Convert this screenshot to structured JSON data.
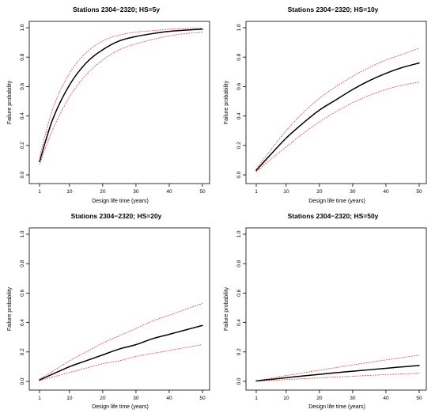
{
  "chart_data": [
    {
      "type": "line",
      "title": "Stations 2304−2320; HS=5y",
      "xlabel": "Design life time (years)",
      "ylabel": "Failure probability",
      "xlim": [
        1,
        50
      ],
      "ylim": [
        0,
        1
      ],
      "xticks": [
        "1",
        "10",
        "20",
        "30",
        "40",
        "50"
      ],
      "yticks": [
        "0.0",
        "0.2",
        "0.4",
        "0.6",
        "0.8",
        "1.0"
      ],
      "grid": false,
      "x": [
        1,
        5,
        10,
        15,
        20,
        25,
        30,
        35,
        40,
        45,
        50
      ],
      "series": [
        {
          "values": [
            0.09,
            0.38,
            0.61,
            0.76,
            0.85,
            0.91,
            0.94,
            0.96,
            0.975,
            0.984,
            0.99
          ],
          "color": "#000000",
          "style": "solid"
        },
        {
          "values": [
            0.12,
            0.45,
            0.69,
            0.83,
            0.91,
            0.95,
            0.97,
            0.98,
            0.99,
            0.995,
            0.998
          ],
          "color": "#e05050",
          "style": "dotted"
        },
        {
          "values": [
            0.07,
            0.31,
            0.53,
            0.68,
            0.78,
            0.85,
            0.89,
            0.92,
            0.945,
            0.96,
            0.97
          ],
          "color": "#e05050",
          "style": "dotted"
        }
      ]
    },
    {
      "type": "line",
      "title": "Stations 2304−2320; HS=10y",
      "xlabel": "Design life time (years)",
      "ylabel": "Failure probability",
      "xlim": [
        1,
        50
      ],
      "ylim": [
        0,
        1
      ],
      "xticks": [
        "1",
        "10",
        "20",
        "30",
        "40",
        "50"
      ],
      "yticks": [
        "0.0",
        "0.2",
        "0.4",
        "0.6",
        "0.8",
        "1.0"
      ],
      "grid": false,
      "x": [
        1,
        5,
        10,
        15,
        20,
        25,
        30,
        35,
        40,
        45,
        50
      ],
      "series": [
        {
          "values": [
            0.03,
            0.13,
            0.25,
            0.35,
            0.44,
            0.51,
            0.58,
            0.64,
            0.69,
            0.73,
            0.76
          ],
          "color": "#000000",
          "style": "solid"
        },
        {
          "values": [
            0.04,
            0.16,
            0.3,
            0.42,
            0.52,
            0.6,
            0.67,
            0.73,
            0.78,
            0.82,
            0.86
          ],
          "color": "#e05050",
          "style": "dotted"
        },
        {
          "values": [
            0.02,
            0.1,
            0.19,
            0.28,
            0.36,
            0.43,
            0.49,
            0.54,
            0.58,
            0.61,
            0.63
          ],
          "color": "#e05050",
          "style": "dotted"
        }
      ]
    },
    {
      "type": "line",
      "title": "Stations 2304−2320; HS=20y",
      "xlabel": "Design life time (years)",
      "ylabel": "Failure probability",
      "xlim": [
        1,
        50
      ],
      "ylim": [
        0,
        1
      ],
      "xticks": [
        "1",
        "10",
        "20",
        "30",
        "40",
        "50"
      ],
      "yticks": [
        "0.0",
        "0.2",
        "0.4",
        "0.6",
        "0.8",
        "1.0"
      ],
      "grid": false,
      "x": [
        1,
        5,
        10,
        15,
        20,
        25,
        30,
        35,
        40,
        45,
        50
      ],
      "series": [
        {
          "values": [
            0.01,
            0.05,
            0.1,
            0.14,
            0.18,
            0.22,
            0.25,
            0.29,
            0.32,
            0.35,
            0.38
          ],
          "color": "#000000",
          "style": "solid"
        },
        {
          "values": [
            0.015,
            0.07,
            0.14,
            0.2,
            0.26,
            0.31,
            0.36,
            0.41,
            0.45,
            0.49,
            0.53
          ],
          "color": "#e05050",
          "style": "dotted"
        },
        {
          "values": [
            0.005,
            0.03,
            0.06,
            0.09,
            0.12,
            0.14,
            0.17,
            0.19,
            0.21,
            0.23,
            0.25
          ],
          "color": "#e05050",
          "style": "dotted"
        }
      ]
    },
    {
      "type": "line",
      "title": "Stations 2304−2320; HS=50y",
      "xlabel": "Design life time (years)",
      "ylabel": "Failure probability",
      "xlim": [
        1,
        50
      ],
      "ylim": [
        0,
        1
      ],
      "xticks": [
        "1",
        "10",
        "20",
        "30",
        "40",
        "50"
      ],
      "yticks": [
        "0.0",
        "0.2",
        "0.4",
        "0.6",
        "0.8",
        "1.0"
      ],
      "grid": false,
      "x": [
        1,
        5,
        10,
        15,
        20,
        25,
        30,
        35,
        40,
        45,
        50
      ],
      "series": [
        {
          "values": [
            0.003,
            0.013,
            0.025,
            0.037,
            0.048,
            0.059,
            0.069,
            0.079,
            0.089,
            0.099,
            0.108
          ],
          "color": "#000000",
          "style": "solid"
        },
        {
          "values": [
            0.004,
            0.02,
            0.04,
            0.058,
            0.076,
            0.094,
            0.112,
            0.129,
            0.146,
            0.162,
            0.178
          ],
          "color": "#e05050",
          "style": "dotted"
        },
        {
          "values": [
            0.001,
            0.006,
            0.012,
            0.018,
            0.024,
            0.03,
            0.035,
            0.041,
            0.046,
            0.051,
            0.056
          ],
          "color": "#e05050",
          "style": "dotted"
        }
      ]
    }
  ]
}
